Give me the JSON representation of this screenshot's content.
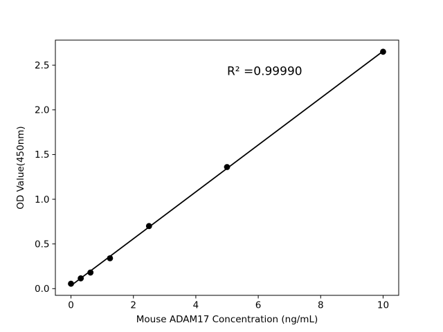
{
  "chart_data": {
    "type": "scatter",
    "title": "",
    "xlabel": "Mouse ADAM17 Concentration (ng/mL)",
    "ylabel": "OD Value(450nm)",
    "annotation": {
      "text": "R² =0.99990",
      "x": 5.0,
      "y": 2.39
    },
    "r_squared": 0.9999,
    "xlim": [
      -0.5,
      10.5
    ],
    "ylim": [
      -0.075,
      2.78
    ],
    "x_ticks": {
      "values": [
        0,
        2,
        4,
        6,
        8,
        10
      ],
      "labels": [
        "0",
        "2",
        "4",
        "6",
        "8",
        "10"
      ]
    },
    "y_ticks": {
      "values": [
        0.0,
        0.5,
        1.0,
        1.5,
        2.0,
        2.5
      ],
      "labels": [
        "0.0",
        "0.5",
        "1.0",
        "1.5",
        "2.0",
        "2.5"
      ]
    },
    "grid": false,
    "legend": null,
    "colors": {
      "marker": "#000000",
      "line": "#000000",
      "background": "#ffffff",
      "axes": "#000000"
    },
    "series": [
      {
        "name": "standard-curve",
        "marker": "circle",
        "color": "#000000",
        "fit": "linear",
        "x": [
          0,
          0.313,
          0.625,
          1.25,
          2.5,
          5,
          10
        ],
        "y": [
          0.055,
          0.115,
          0.18,
          0.34,
          0.7,
          1.36,
          2.65
        ]
      }
    ]
  }
}
